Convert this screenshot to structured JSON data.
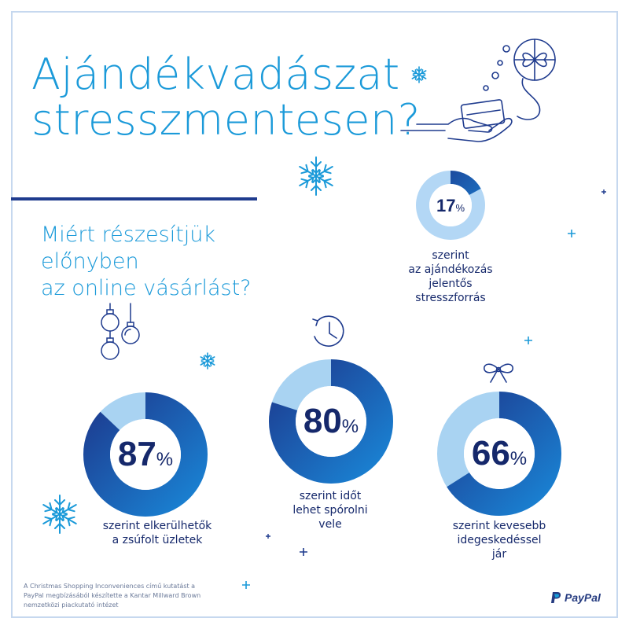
{
  "title": {
    "line1": "Ajándékvadászat",
    "line2": "stresszmentesen?"
  },
  "question": {
    "line1": "Miért részesítjük",
    "line2": "előnyben",
    "line3": "az online vásárlást?"
  },
  "stats": [
    {
      "value": 17,
      "value_text": "17",
      "percent_sign": "%",
      "caption": [
        "szerint",
        "az ajándékozás",
        "jelentős",
        "stresszforrás"
      ]
    },
    {
      "value": 87,
      "value_text": "87",
      "percent_sign": "%",
      "caption": [
        "szerint elkerülhetők",
        "a zsúfolt üzletek"
      ]
    },
    {
      "value": 80,
      "value_text": "80",
      "percent_sign": "%",
      "caption": [
        "szerint időt",
        "lehet spórolni",
        "vele"
      ]
    },
    {
      "value": 66,
      "value_text": "66",
      "percent_sign": "%",
      "caption": [
        "szerint kevesebb",
        "idegeskedéssel",
        "jár"
      ]
    }
  ],
  "footnote": [
    "A Christmas Shopping Inconveniences című kutatást a",
    "PayPal megbízásából készítette a Kantar Millward Brown",
    "nemzetközi piackutató intézet"
  ],
  "brand": {
    "name": "PayPal"
  },
  "icons": [
    "hand-card-gift-icon",
    "snowflake-icon",
    "ornament-icon",
    "clock-icon",
    "bow-icon",
    "plus-sparkle-icon",
    "dot-sparkle-icon",
    "paypal-logo-icon"
  ],
  "colors": {
    "title_blue": "#1b9ad9",
    "navy": "#15286b",
    "divider": "#1f3b8e",
    "ring_dark": "#1d3e92",
    "ring_mid": "#1a82d3",
    "ring_light": "#a9d3f2",
    "small_ring_light": "#b3d7f5"
  }
}
